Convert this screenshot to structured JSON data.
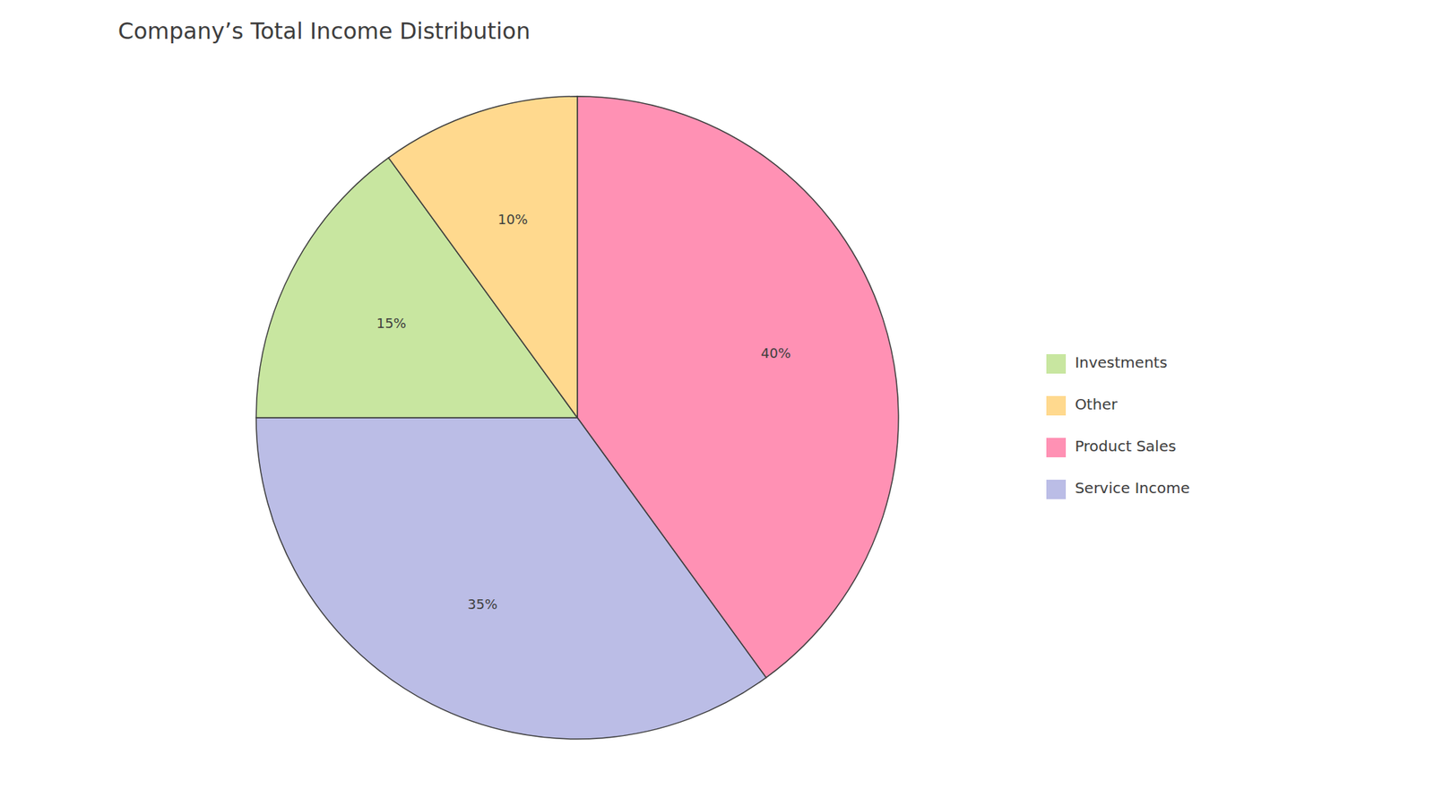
{
  "chart_data": {
    "type": "pie",
    "title": "Company’s Total Income Distribution",
    "categories": [
      "Product Sales",
      "Service Income",
      "Investments",
      "Other"
    ],
    "values": [
      40,
      35,
      15,
      10
    ],
    "value_labels": [
      "40%",
      "35%",
      "15%",
      "10%"
    ],
    "colors": [
      "#FF91B4",
      "#BBBDE6",
      "#C8E6A0",
      "#FFD98E"
    ],
    "data_labels": true,
    "legend": "right"
  }
}
